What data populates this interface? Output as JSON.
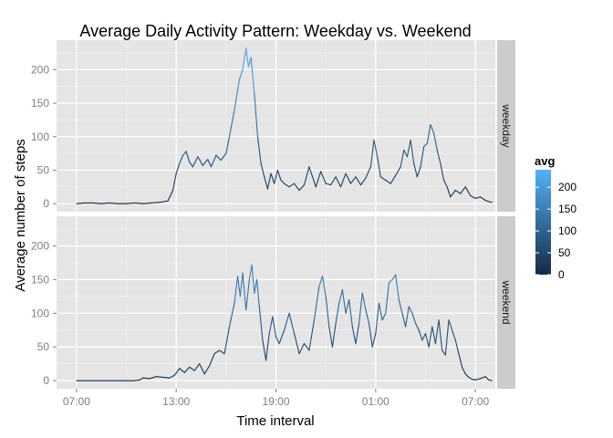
{
  "chart_data": {
    "type": "line",
    "title": "Average Daily Activity Pattern: Weekday vs. Weekend",
    "xlabel": "Time interval",
    "ylabel": "Average number of steps",
    "x_ticks": [
      "07:00",
      "13:00",
      "19:00",
      "01:00",
      "07:00"
    ],
    "y_ticks": [
      0,
      50,
      100,
      150,
      200
    ],
    "ylim": [
      -12,
      244
    ],
    "xlim_hours_from_start": [
      -1.2,
      25.2
    ],
    "grid": true,
    "facet_direction": "rows",
    "colorbar": {
      "title": "avg",
      "ticks": [
        0,
        50,
        100,
        150,
        200
      ],
      "range": [
        0,
        240
      ],
      "low_color": "#132B43",
      "high_color": "#56B1F7"
    },
    "panels": [
      {
        "strip_label": "weekday",
        "points": [
          [
            0,
            0
          ],
          [
            0.5,
            1
          ],
          [
            1,
            1
          ],
          [
            1.5,
            0
          ],
          [
            2,
            1
          ],
          [
            2.5,
            0
          ],
          [
            3,
            0
          ],
          [
            3.5,
            1
          ],
          [
            4,
            0
          ],
          [
            4.5,
            1
          ],
          [
            5,
            2
          ],
          [
            5.5,
            4
          ],
          [
            5.8,
            20
          ],
          [
            6,
            45
          ],
          [
            6.2,
            60
          ],
          [
            6.4,
            72
          ],
          [
            6.6,
            78
          ],
          [
            6.8,
            62
          ],
          [
            7,
            55
          ],
          [
            7.3,
            70
          ],
          [
            7.6,
            57
          ],
          [
            7.9,
            66
          ],
          [
            8.1,
            55
          ],
          [
            8.4,
            72
          ],
          [
            8.7,
            65
          ],
          [
            9,
            75
          ],
          [
            9.2,
            100
          ],
          [
            9.5,
            140
          ],
          [
            9.8,
            185
          ],
          [
            10,
            200
          ],
          [
            10.2,
            232
          ],
          [
            10.35,
            205
          ],
          [
            10.5,
            218
          ],
          [
            10.7,
            165
          ],
          [
            10.9,
            100
          ],
          [
            11.1,
            60
          ],
          [
            11.3,
            40
          ],
          [
            11.5,
            22
          ],
          [
            11.7,
            45
          ],
          [
            11.9,
            30
          ],
          [
            12.1,
            50
          ],
          [
            12.3,
            35
          ],
          [
            12.5,
            30
          ],
          [
            12.8,
            25
          ],
          [
            13.1,
            30
          ],
          [
            13.4,
            20
          ],
          [
            13.7,
            28
          ],
          [
            14,
            55
          ],
          [
            14.2,
            40
          ],
          [
            14.4,
            25
          ],
          [
            14.7,
            48
          ],
          [
            15,
            30
          ],
          [
            15.3,
            28
          ],
          [
            15.6,
            40
          ],
          [
            15.9,
            25
          ],
          [
            16.2,
            45
          ],
          [
            16.5,
            30
          ],
          [
            16.8,
            40
          ],
          [
            17.1,
            28
          ],
          [
            17.4,
            38
          ],
          [
            17.7,
            55
          ],
          [
            17.9,
            95
          ],
          [
            18.1,
            70
          ],
          [
            18.3,
            40
          ],
          [
            18.6,
            35
          ],
          [
            18.9,
            30
          ],
          [
            19.2,
            42
          ],
          [
            19.5,
            55
          ],
          [
            19.7,
            80
          ],
          [
            19.9,
            70
          ],
          [
            20.1,
            95
          ],
          [
            20.3,
            60
          ],
          [
            20.5,
            40
          ],
          [
            20.7,
            55
          ],
          [
            20.9,
            85
          ],
          [
            21.1,
            90
          ],
          [
            21.3,
            118
          ],
          [
            21.5,
            105
          ],
          [
            21.7,
            80
          ],
          [
            21.9,
            60
          ],
          [
            22.1,
            35
          ],
          [
            22.3,
            25
          ],
          [
            22.5,
            10
          ],
          [
            22.8,
            20
          ],
          [
            23.1,
            15
          ],
          [
            23.4,
            25
          ],
          [
            23.7,
            12
          ],
          [
            24,
            8
          ],
          [
            24.3,
            10
          ],
          [
            24.6,
            5
          ],
          [
            24.8,
            3
          ],
          [
            25,
            2
          ]
        ]
      },
      {
        "strip_label": "weekend",
        "points": [
          [
            0,
            0
          ],
          [
            0.5,
            0
          ],
          [
            1,
            0
          ],
          [
            1.5,
            0
          ],
          [
            2,
            0
          ],
          [
            2.5,
            0
          ],
          [
            3,
            0
          ],
          [
            3.5,
            0
          ],
          [
            3.8,
            1
          ],
          [
            4,
            4
          ],
          [
            4.4,
            3
          ],
          [
            4.8,
            6
          ],
          [
            5.2,
            5
          ],
          [
            5.6,
            4
          ],
          [
            5.9,
            8
          ],
          [
            6.2,
            18
          ],
          [
            6.5,
            12
          ],
          [
            6.8,
            20
          ],
          [
            7.1,
            15
          ],
          [
            7.4,
            25
          ],
          [
            7.7,
            10
          ],
          [
            8,
            22
          ],
          [
            8.3,
            40
          ],
          [
            8.6,
            45
          ],
          [
            8.9,
            40
          ],
          [
            9.2,
            80
          ],
          [
            9.5,
            115
          ],
          [
            9.7,
            155
          ],
          [
            9.85,
            125
          ],
          [
            10,
            160
          ],
          [
            10.2,
            105
          ],
          [
            10.4,
            150
          ],
          [
            10.55,
            172
          ],
          [
            10.7,
            130
          ],
          [
            10.85,
            150
          ],
          [
            11,
            110
          ],
          [
            11.2,
            60
          ],
          [
            11.4,
            30
          ],
          [
            11.6,
            70
          ],
          [
            11.8,
            95
          ],
          [
            12,
            65
          ],
          [
            12.2,
            55
          ],
          [
            12.5,
            75
          ],
          [
            12.8,
            100
          ],
          [
            13.1,
            70
          ],
          [
            13.4,
            40
          ],
          [
            13.7,
            55
          ],
          [
            14,
            45
          ],
          [
            14.3,
            90
          ],
          [
            14.6,
            140
          ],
          [
            14.8,
            155
          ],
          [
            15,
            125
          ],
          [
            15.2,
            80
          ],
          [
            15.4,
            50
          ],
          [
            15.6,
            85
          ],
          [
            15.8,
            115
          ],
          [
            16,
            135
          ],
          [
            16.2,
            100
          ],
          [
            16.4,
            120
          ],
          [
            16.6,
            80
          ],
          [
            16.8,
            55
          ],
          [
            17,
            85
          ],
          [
            17.2,
            130
          ],
          [
            17.4,
            105
          ],
          [
            17.6,
            85
          ],
          [
            17.8,
            50
          ],
          [
            18,
            70
          ],
          [
            18.2,
            115
          ],
          [
            18.4,
            90
          ],
          [
            18.6,
            100
          ],
          [
            18.8,
            145
          ],
          [
            19,
            150
          ],
          [
            19.2,
            157
          ],
          [
            19.4,
            120
          ],
          [
            19.6,
            100
          ],
          [
            19.8,
            80
          ],
          [
            20,
            110
          ],
          [
            20.2,
            100
          ],
          [
            20.4,
            85
          ],
          [
            20.6,
            75
          ],
          [
            20.8,
            60
          ],
          [
            21,
            70
          ],
          [
            21.2,
            50
          ],
          [
            21.4,
            80
          ],
          [
            21.6,
            55
          ],
          [
            21.8,
            90
          ],
          [
            22,
            45
          ],
          [
            22.2,
            38
          ],
          [
            22.4,
            90
          ],
          [
            22.6,
            75
          ],
          [
            22.8,
            60
          ],
          [
            23,
            40
          ],
          [
            23.2,
            20
          ],
          [
            23.4,
            10
          ],
          [
            23.6,
            5
          ],
          [
            23.8,
            2
          ],
          [
            24,
            1
          ],
          [
            24.3,
            3
          ],
          [
            24.6,
            6
          ],
          [
            24.8,
            1
          ],
          [
            25,
            0
          ]
        ]
      }
    ]
  }
}
